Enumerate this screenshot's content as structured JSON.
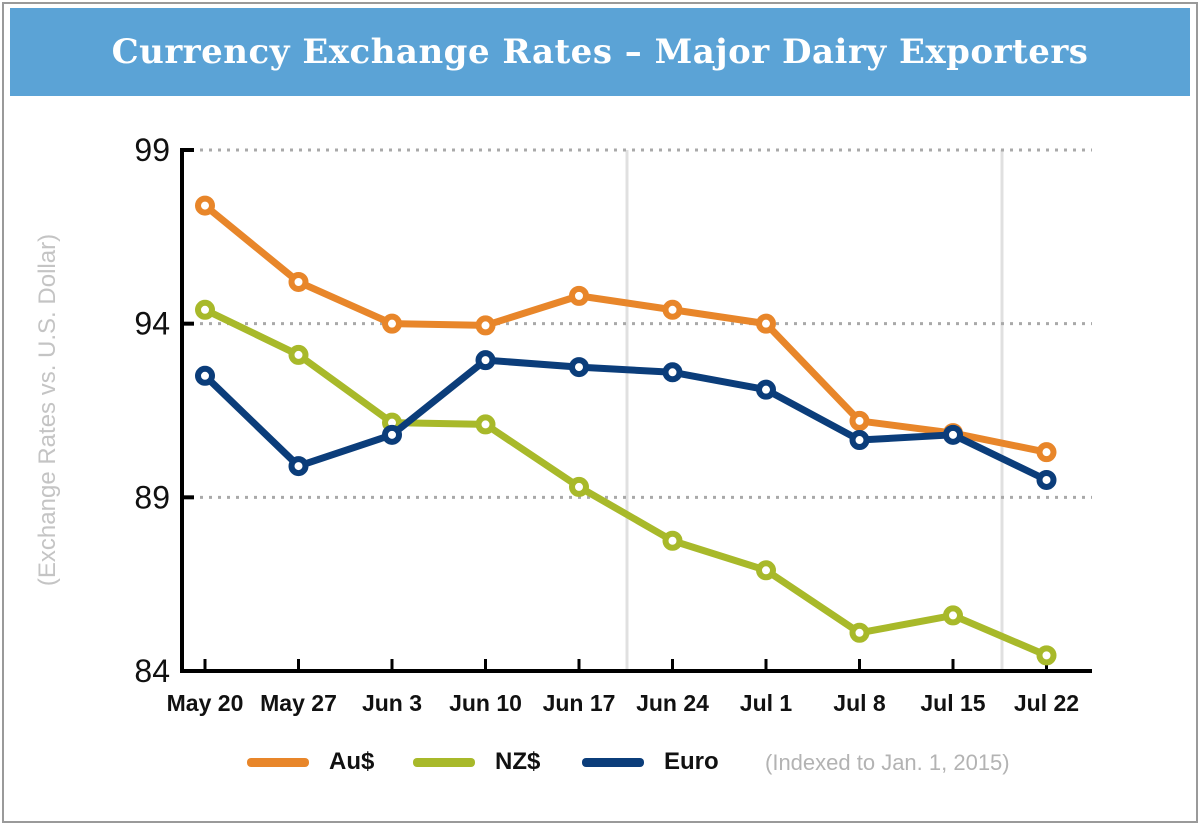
{
  "title": "Currency Exchange Rates – Major Dairy Exporters",
  "note": "(Indexed to Jan. 1, 2015)",
  "colors": {
    "header": "#5ba3d6",
    "au": "#e8862a",
    "nz": "#a8b92a",
    "euro": "#0b3d7a"
  },
  "chart_data": {
    "type": "line",
    "title": "Currency Exchange Rates – Major Dairy Exporters",
    "ylabel": "(Exchange Rates vs. U.S. Dollar)",
    "xlabel": "",
    "ylim": [
      84,
      99
    ],
    "yticks": [
      "84",
      "89",
      "94",
      "99"
    ],
    "grid": "horizontal dotted",
    "legend": "bottom",
    "categories": [
      "May 20",
      "May 27",
      "Jun 3",
      "Jun 10",
      "Jun 17",
      "Jun 24",
      "Jul 1",
      "Jul 8",
      "Jul 15",
      "Jul 22"
    ],
    "series": [
      {
        "name": "Au$",
        "color": "#e8862a",
        "values": [
          97.4,
          95.2,
          94.0,
          93.95,
          94.8,
          94.4,
          94.0,
          91.2,
          90.85,
          90.3
        ]
      },
      {
        "name": "NZ$",
        "color": "#a8b92a",
        "values": [
          94.4,
          93.1,
          91.15,
          91.1,
          89.3,
          87.75,
          86.9,
          85.1,
          85.6,
          84.45
        ]
      },
      {
        "name": "Euro",
        "color": "#0b3d7a",
        "values": [
          92.5,
          89.9,
          90.8,
          92.95,
          92.75,
          92.6,
          92.1,
          90.65,
          90.8,
          89.5
        ]
      }
    ]
  }
}
